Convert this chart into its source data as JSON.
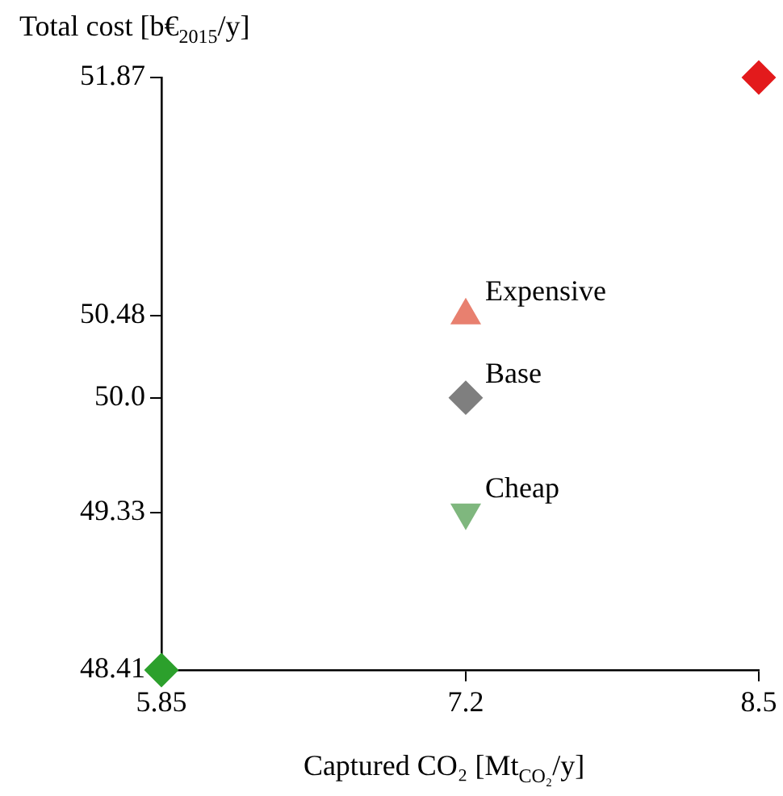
{
  "chart_data": {
    "type": "scatter",
    "ylabel": "Total cost [b€$_{2015}$/y]",
    "xlabel": "Captured CO₂ [Mt$_{CO₂}$/y]",
    "xlim": [
      5.85,
      8.5
    ],
    "xticks": [
      5.85,
      7.2,
      8.5
    ],
    "ylim": [
      48.41,
      51.87
    ],
    "yticks": [
      48.41,
      49.33,
      {
        "value": 50.0,
        "label": "50.0"
      },
      50.48,
      51.87
    ],
    "grid": false,
    "legend": false,
    "series": [
      {
        "color": "#e31a1c",
        "marker": "diamond",
        "x": [
          8.5
        ],
        "values": [
          51.87
        ]
      },
      {
        "name": "Expensive",
        "color": "#e8806f",
        "marker": "triangle",
        "x": [
          7.2
        ],
        "values": [
          50.48
        ]
      },
      {
        "name": "Base",
        "color": "#7f7f7f",
        "marker": "diamond",
        "x": [
          7.2
        ],
        "values": [
          50.0
        ]
      },
      {
        "name": "Cheap",
        "color": "#7fb77e",
        "marker": "triangle-down",
        "x": [
          7.2
        ],
        "values": [
          49.33
        ]
      },
      {
        "color": "#2ca02c",
        "marker": "diamond",
        "x": [
          5.85
        ],
        "values": [
          48.41
        ]
      }
    ]
  }
}
